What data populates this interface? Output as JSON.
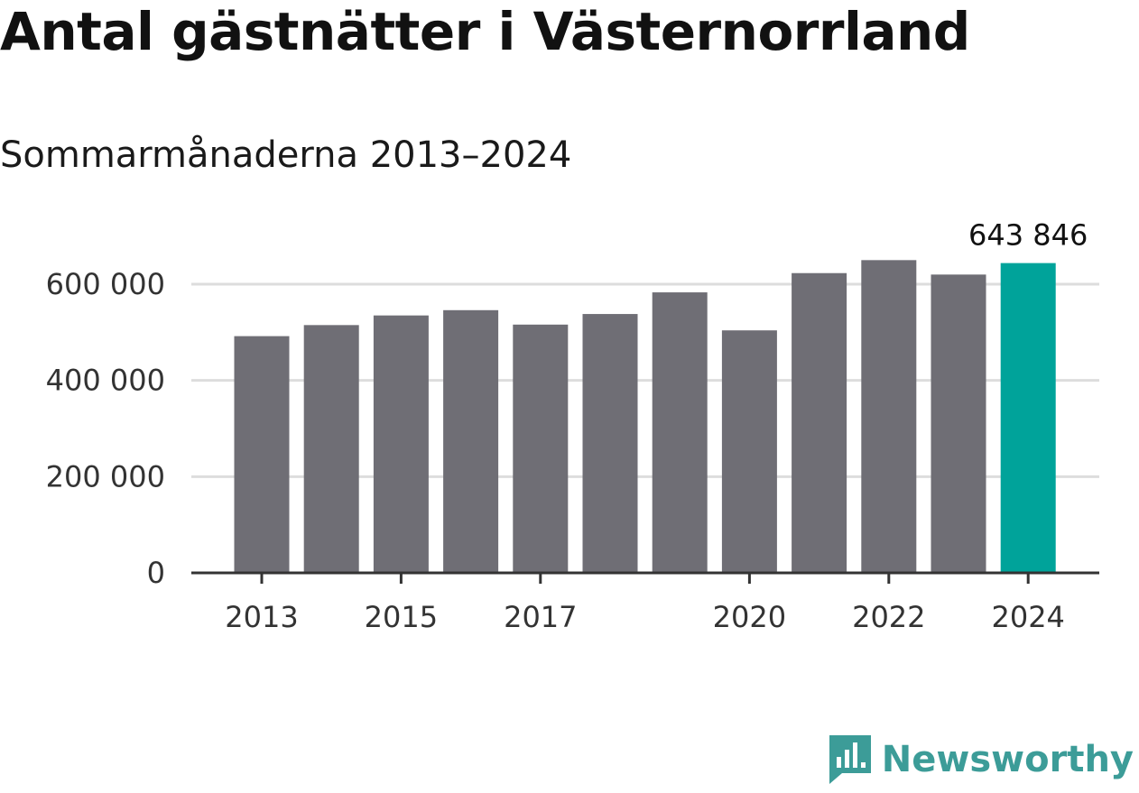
{
  "chart_data": {
    "type": "bar",
    "title": "Antal gästnätter i Västernorrland",
    "subtitle": "Sommarmånaderna 2013–2024",
    "categories": [
      "2013",
      "2014",
      "2015",
      "2016",
      "2017",
      "2018",
      "2019",
      "2020",
      "2021",
      "2022",
      "2023",
      "2024"
    ],
    "values": [
      492000,
      515000,
      535000,
      546000,
      516000,
      538000,
      583000,
      504000,
      623000,
      650000,
      620000,
      643846
    ],
    "ylim": [
      0,
      700000
    ],
    "y_ticks": [
      0,
      200000,
      400000,
      600000
    ],
    "y_tick_labels": [
      "0",
      "200 000",
      "400 000",
      "600 000"
    ],
    "x_tick_labels": [
      "2013",
      "2015",
      "2017",
      "2020",
      "2022",
      "2024"
    ],
    "highlight_index": 11,
    "highlight_label": "643 846",
    "grid": true,
    "colors": {
      "bar": "#6f6e75",
      "highlight": "#00a39a",
      "grid": "#dddddd",
      "axis": "#333333"
    }
  },
  "brand": {
    "name": "Newsworthy",
    "icon": "newsworthy-logo-icon",
    "color": "#3c9c98"
  }
}
